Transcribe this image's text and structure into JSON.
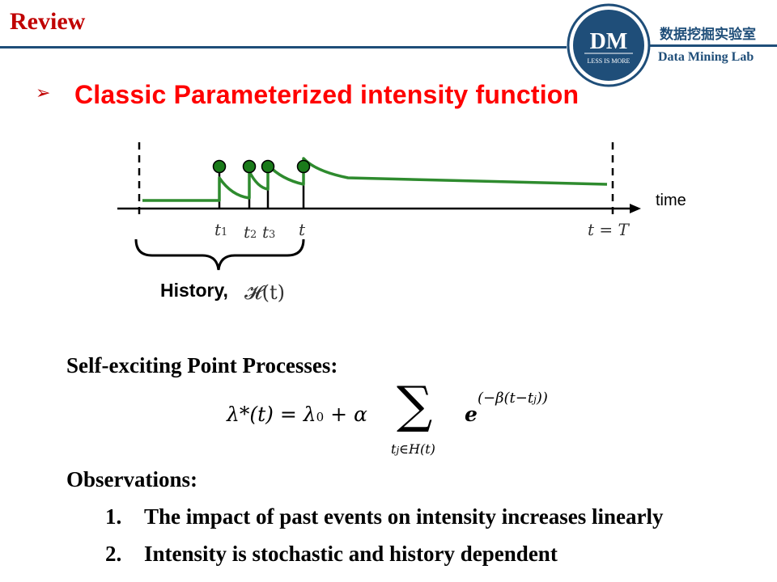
{
  "header": {
    "title": "Review",
    "lab_name_cn": "数据挖掘实验室",
    "lab_name_en": "Data Mining Lab",
    "logo_text": "DM",
    "logo_motto": "LESS IS MORE"
  },
  "slide": {
    "bullet": "➢",
    "heading": "Classic Parameterized intensity function"
  },
  "diagram": {
    "time_label": "time",
    "tick_t1": "t",
    "tick_t1_sub": "1",
    "tick_t2": "t",
    "tick_t2_sub": "2",
    "tick_t3": "t",
    "tick_t3_sub": "3",
    "tick_t": "t",
    "tick_T": "t = T",
    "history_label": "History,",
    "history_math": "𝓗(t)"
  },
  "section1": {
    "title": "Self-exciting Point Processes:"
  },
  "formula": {
    "lhs": "λ*(t) = λ",
    "lhs_sub": "0",
    "plus_alpha": " + α",
    "sum": "∑",
    "sum_index": "t",
    "sum_index_sub": "j",
    "sum_index_rest": "∈H(t)",
    "exp_base": "e",
    "exp_power": "(−β(t−t",
    "exp_power_sub": "j",
    "exp_power_end": "))"
  },
  "section2": {
    "title": "Observations:"
  },
  "observations": [
    {
      "num": "1.",
      "text": "The impact of past events on intensity increases linearly"
    },
    {
      "num": "2.",
      "text": "Intensity is stochastic and history dependent"
    }
  ],
  "colors": {
    "accent_red": "#c00000",
    "heading_red": "#ff0000",
    "navy": "#1f4e79",
    "curve_green": "#2e8b2e",
    "dot_green": "#1a7a1a"
  }
}
